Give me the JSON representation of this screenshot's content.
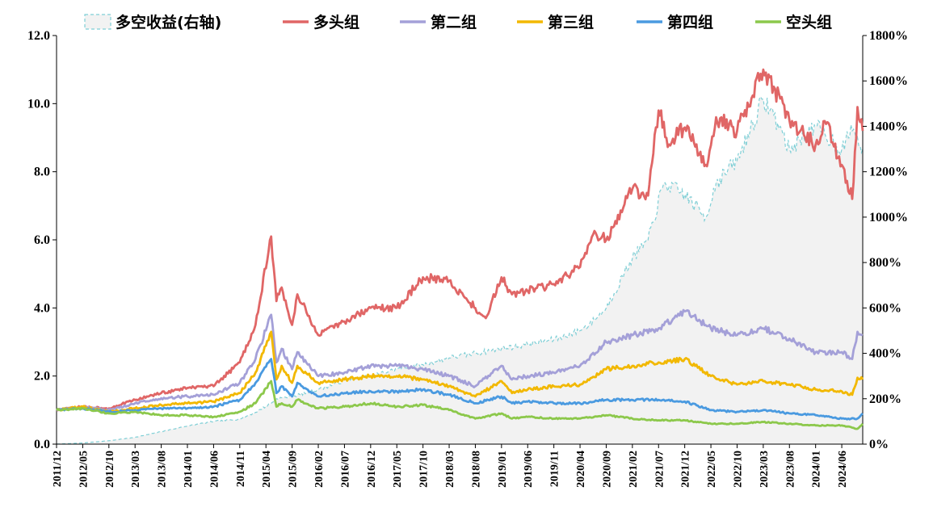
{
  "chart_data": {
    "type": "line",
    "title": "",
    "xlabel": "",
    "ylabel": "",
    "ylim": [
      0,
      12
    ],
    "y2lim": [
      0,
      1800
    ],
    "yticks": [
      "0.0",
      "2.0",
      "4.0",
      "6.0",
      "8.0",
      "10.0",
      "12.0"
    ],
    "y2ticks": [
      "0%",
      "200%",
      "400%",
      "600%",
      "800%",
      "1000%",
      "1200%",
      "1400%",
      "1600%",
      "1800%"
    ],
    "x_ticks": [
      "2011/12",
      "2012/05",
      "2012/10",
      "2013/03",
      "2013/08",
      "2014/01",
      "2014/06",
      "2014/11",
      "2015/04",
      "2015/09",
      "2016/02",
      "2016/07",
      "2016/12",
      "2017/05",
      "2017/10",
      "2018/03",
      "2018/08",
      "2019/01",
      "2019/06",
      "2019/11",
      "2020/04",
      "2020/09",
      "2021/02",
      "2021/07",
      "2021/12",
      "2022/05",
      "2022/10",
      "2023/03",
      "2023/08",
      "2024/01",
      "2024/06"
    ],
    "x_start": "2011/12",
    "x_end": "2024/10",
    "legend_position": "top",
    "series": [
      {
        "name": "多空收益(右轴)",
        "style": "area-dashed",
        "axis": "right",
        "color": "#7fcfd6",
        "fill": "#f2f2f2",
        "dates": [
          "2011/12",
          "2012/05",
          "2012/10",
          "2013/03",
          "2013/08",
          "2014/01",
          "2014/06",
          "2014/11",
          "2015/02",
          "2015/05",
          "2015/06",
          "2015/09",
          "2016/02",
          "2016/07",
          "2016/12",
          "2017/05",
          "2017/10",
          "2018/03",
          "2018/08",
          "2019/01",
          "2019/06",
          "2019/11",
          "2020/04",
          "2020/07",
          "2020/09",
          "2021/02",
          "2021/05",
          "2021/08",
          "2021/12",
          "2022/04",
          "2022/06",
          "2022/10",
          "2023/03",
          "2023/05",
          "2023/08",
          "2024/01",
          "2024/06",
          "2024/08",
          "2024/10"
        ],
        "values": [
          0,
          5,
          15,
          30,
          55,
          80,
          100,
          110,
          140,
          180,
          200,
          210,
          240,
          280,
          300,
          330,
          350,
          380,
          400,
          420,
          440,
          460,
          500,
          550,
          600,
          820,
          900,
          1150,
          1100,
          1000,
          1150,
          1250,
          1520,
          1450,
          1300,
          1400,
          1300,
          1380,
          1300
        ]
      },
      {
        "name": "多头组",
        "axis": "left",
        "color": "#e06666",
        "dates": [
          "2011/12",
          "2012/05",
          "2012/10",
          "2013/03",
          "2013/08",
          "2014/01",
          "2014/06",
          "2014/11",
          "2015/02",
          "2015/05",
          "2015/06",
          "2015/07",
          "2015/09",
          "2015/10",
          "2016/02",
          "2016/07",
          "2016/12",
          "2017/05",
          "2017/10",
          "2018/03",
          "2018/06",
          "2018/10",
          "2019/01",
          "2019/03",
          "2019/06",
          "2019/11",
          "2020/04",
          "2020/07",
          "2020/09",
          "2021/02",
          "2021/05",
          "2021/07",
          "2021/09",
          "2021/12",
          "2022/04",
          "2022/06",
          "2022/10",
          "2023/03",
          "2023/05",
          "2023/08",
          "2024/01",
          "2024/03",
          "2024/06",
          "2024/08",
          "2024/09",
          "2024/10"
        ],
        "values": [
          1.0,
          1.1,
          1.05,
          1.3,
          1.5,
          1.65,
          1.7,
          2.4,
          3.5,
          6.1,
          4.2,
          4.6,
          3.5,
          4.4,
          3.2,
          3.6,
          4.0,
          4.0,
          4.9,
          4.8,
          4.3,
          3.7,
          4.9,
          4.4,
          4.5,
          4.7,
          5.2,
          6.2,
          6.0,
          7.5,
          7.3,
          9.8,
          8.8,
          9.3,
          8.2,
          9.6,
          9.2,
          11.0,
          10.5,
          9.5,
          8.8,
          9.4,
          8.2,
          7.2,
          9.9,
          9.2
        ]
      },
      {
        "name": "第二组",
        "axis": "left",
        "color": "#a4a0d8",
        "dates": [
          "2011/12",
          "2012/05",
          "2012/10",
          "2013/03",
          "2013/08",
          "2014/01",
          "2014/06",
          "2014/11",
          "2015/02",
          "2015/05",
          "2015/06",
          "2015/07",
          "2015/09",
          "2015/10",
          "2016/02",
          "2016/07",
          "2016/12",
          "2017/05",
          "2017/10",
          "2018/03",
          "2018/08",
          "2019/01",
          "2019/03",
          "2019/06",
          "2019/11",
          "2020/04",
          "2020/09",
          "2021/02",
          "2021/07",
          "2021/12",
          "2022/05",
          "2022/10",
          "2023/03",
          "2023/08",
          "2024/01",
          "2024/06",
          "2024/08",
          "2024/09",
          "2024/10"
        ],
        "values": [
          1.0,
          1.1,
          1.0,
          1.2,
          1.35,
          1.4,
          1.45,
          1.8,
          2.5,
          3.8,
          2.4,
          2.8,
          2.2,
          2.7,
          2.0,
          2.1,
          2.3,
          2.3,
          2.2,
          2.0,
          1.7,
          2.3,
          1.9,
          2.0,
          2.1,
          2.3,
          3.0,
          3.2,
          3.4,
          3.9,
          3.4,
          3.2,
          3.4,
          3.1,
          2.7,
          2.7,
          2.5,
          3.3,
          3.2
        ]
      },
      {
        "name": "第三组",
        "axis": "left",
        "color": "#f2b800",
        "dates": [
          "2011/12",
          "2012/05",
          "2012/10",
          "2013/03",
          "2013/08",
          "2014/01",
          "2014/06",
          "2014/11",
          "2015/02",
          "2015/05",
          "2015/06",
          "2015/07",
          "2015/09",
          "2015/10",
          "2016/02",
          "2016/07",
          "2016/12",
          "2017/05",
          "2017/10",
          "2018/03",
          "2018/08",
          "2019/01",
          "2019/03",
          "2019/06",
          "2019/11",
          "2020/04",
          "2020/09",
          "2021/02",
          "2021/07",
          "2021/12",
          "2022/05",
          "2022/10",
          "2023/03",
          "2023/08",
          "2024/01",
          "2024/06",
          "2024/08",
          "2024/09",
          "2024/10"
        ],
        "values": [
          1.0,
          1.1,
          0.95,
          1.05,
          1.15,
          1.2,
          1.25,
          1.5,
          2.1,
          3.3,
          1.9,
          2.3,
          1.8,
          2.3,
          1.8,
          1.9,
          2.0,
          2.0,
          1.9,
          1.7,
          1.4,
          1.85,
          1.5,
          1.6,
          1.7,
          1.75,
          2.2,
          2.3,
          2.4,
          2.5,
          2.0,
          1.75,
          1.85,
          1.75,
          1.6,
          1.55,
          1.45,
          1.95,
          1.9
        ]
      },
      {
        "name": "第四组",
        "axis": "left",
        "color": "#4a9ae0",
        "dates": [
          "2011/12",
          "2012/05",
          "2012/10",
          "2013/03",
          "2013/08",
          "2014/01",
          "2014/06",
          "2014/11",
          "2015/02",
          "2015/05",
          "2015/06",
          "2015/07",
          "2015/09",
          "2015/10",
          "2016/02",
          "2016/07",
          "2016/12",
          "2017/05",
          "2017/10",
          "2018/03",
          "2018/08",
          "2019/01",
          "2019/03",
          "2019/06",
          "2019/11",
          "2020/04",
          "2020/09",
          "2021/02",
          "2021/07",
          "2021/12",
          "2022/05",
          "2022/10",
          "2023/03",
          "2023/08",
          "2024/01",
          "2024/06",
          "2024/09",
          "2024/10"
        ],
        "values": [
          1.0,
          1.05,
          0.95,
          1.0,
          1.05,
          1.05,
          1.1,
          1.3,
          1.8,
          2.5,
          1.5,
          1.7,
          1.4,
          1.8,
          1.4,
          1.5,
          1.55,
          1.55,
          1.6,
          1.45,
          1.2,
          1.4,
          1.2,
          1.25,
          1.2,
          1.2,
          1.3,
          1.3,
          1.3,
          1.25,
          1.0,
          0.95,
          1.0,
          0.9,
          0.85,
          0.75,
          0.75,
          0.9
        ]
      },
      {
        "name": "空头组",
        "axis": "left",
        "color": "#8cc84b",
        "dates": [
          "2011/12",
          "2012/05",
          "2012/10",
          "2013/03",
          "2013/08",
          "2014/01",
          "2014/06",
          "2014/11",
          "2015/02",
          "2015/05",
          "2015/06",
          "2015/07",
          "2015/09",
          "2015/10",
          "2016/02",
          "2016/07",
          "2016/12",
          "2017/05",
          "2017/10",
          "2018/03",
          "2018/08",
          "2019/01",
          "2019/03",
          "2019/06",
          "2019/11",
          "2020/04",
          "2020/09",
          "2021/02",
          "2021/07",
          "2021/12",
          "2022/05",
          "2022/10",
          "2023/03",
          "2023/08",
          "2024/01",
          "2024/06",
          "2024/09",
          "2024/10"
        ],
        "values": [
          1.0,
          1.05,
          0.9,
          0.95,
          0.85,
          0.85,
          0.8,
          0.95,
          1.2,
          1.85,
          1.1,
          1.2,
          1.1,
          1.3,
          1.05,
          1.1,
          1.2,
          1.1,
          1.15,
          1.0,
          0.75,
          0.9,
          0.75,
          0.8,
          0.75,
          0.75,
          0.85,
          0.75,
          0.7,
          0.7,
          0.6,
          0.6,
          0.65,
          0.6,
          0.55,
          0.55,
          0.45,
          0.6
        ]
      }
    ]
  }
}
